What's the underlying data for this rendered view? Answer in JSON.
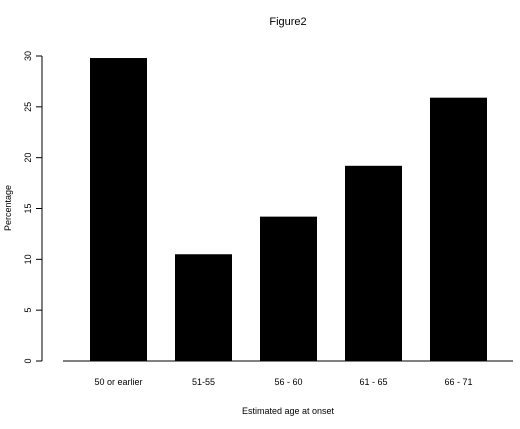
{
  "chart_data": {
    "type": "bar",
    "title": "Figure2",
    "xlabel": "Estimated age at onset",
    "ylabel": "Percentage",
    "categories": [
      "50 or earlier",
      "51-55",
      "56 - 60",
      "61 - 65",
      "66 - 71"
    ],
    "values": [
      29.8,
      10.5,
      14.2,
      19.2,
      25.9
    ],
    "ylim": [
      0,
      30
    ],
    "yticks": [
      "0",
      "5",
      "10",
      "15",
      "20",
      "25",
      "30"
    ],
    "bar_color": "#000000",
    "grid": false,
    "legend": "none"
  }
}
